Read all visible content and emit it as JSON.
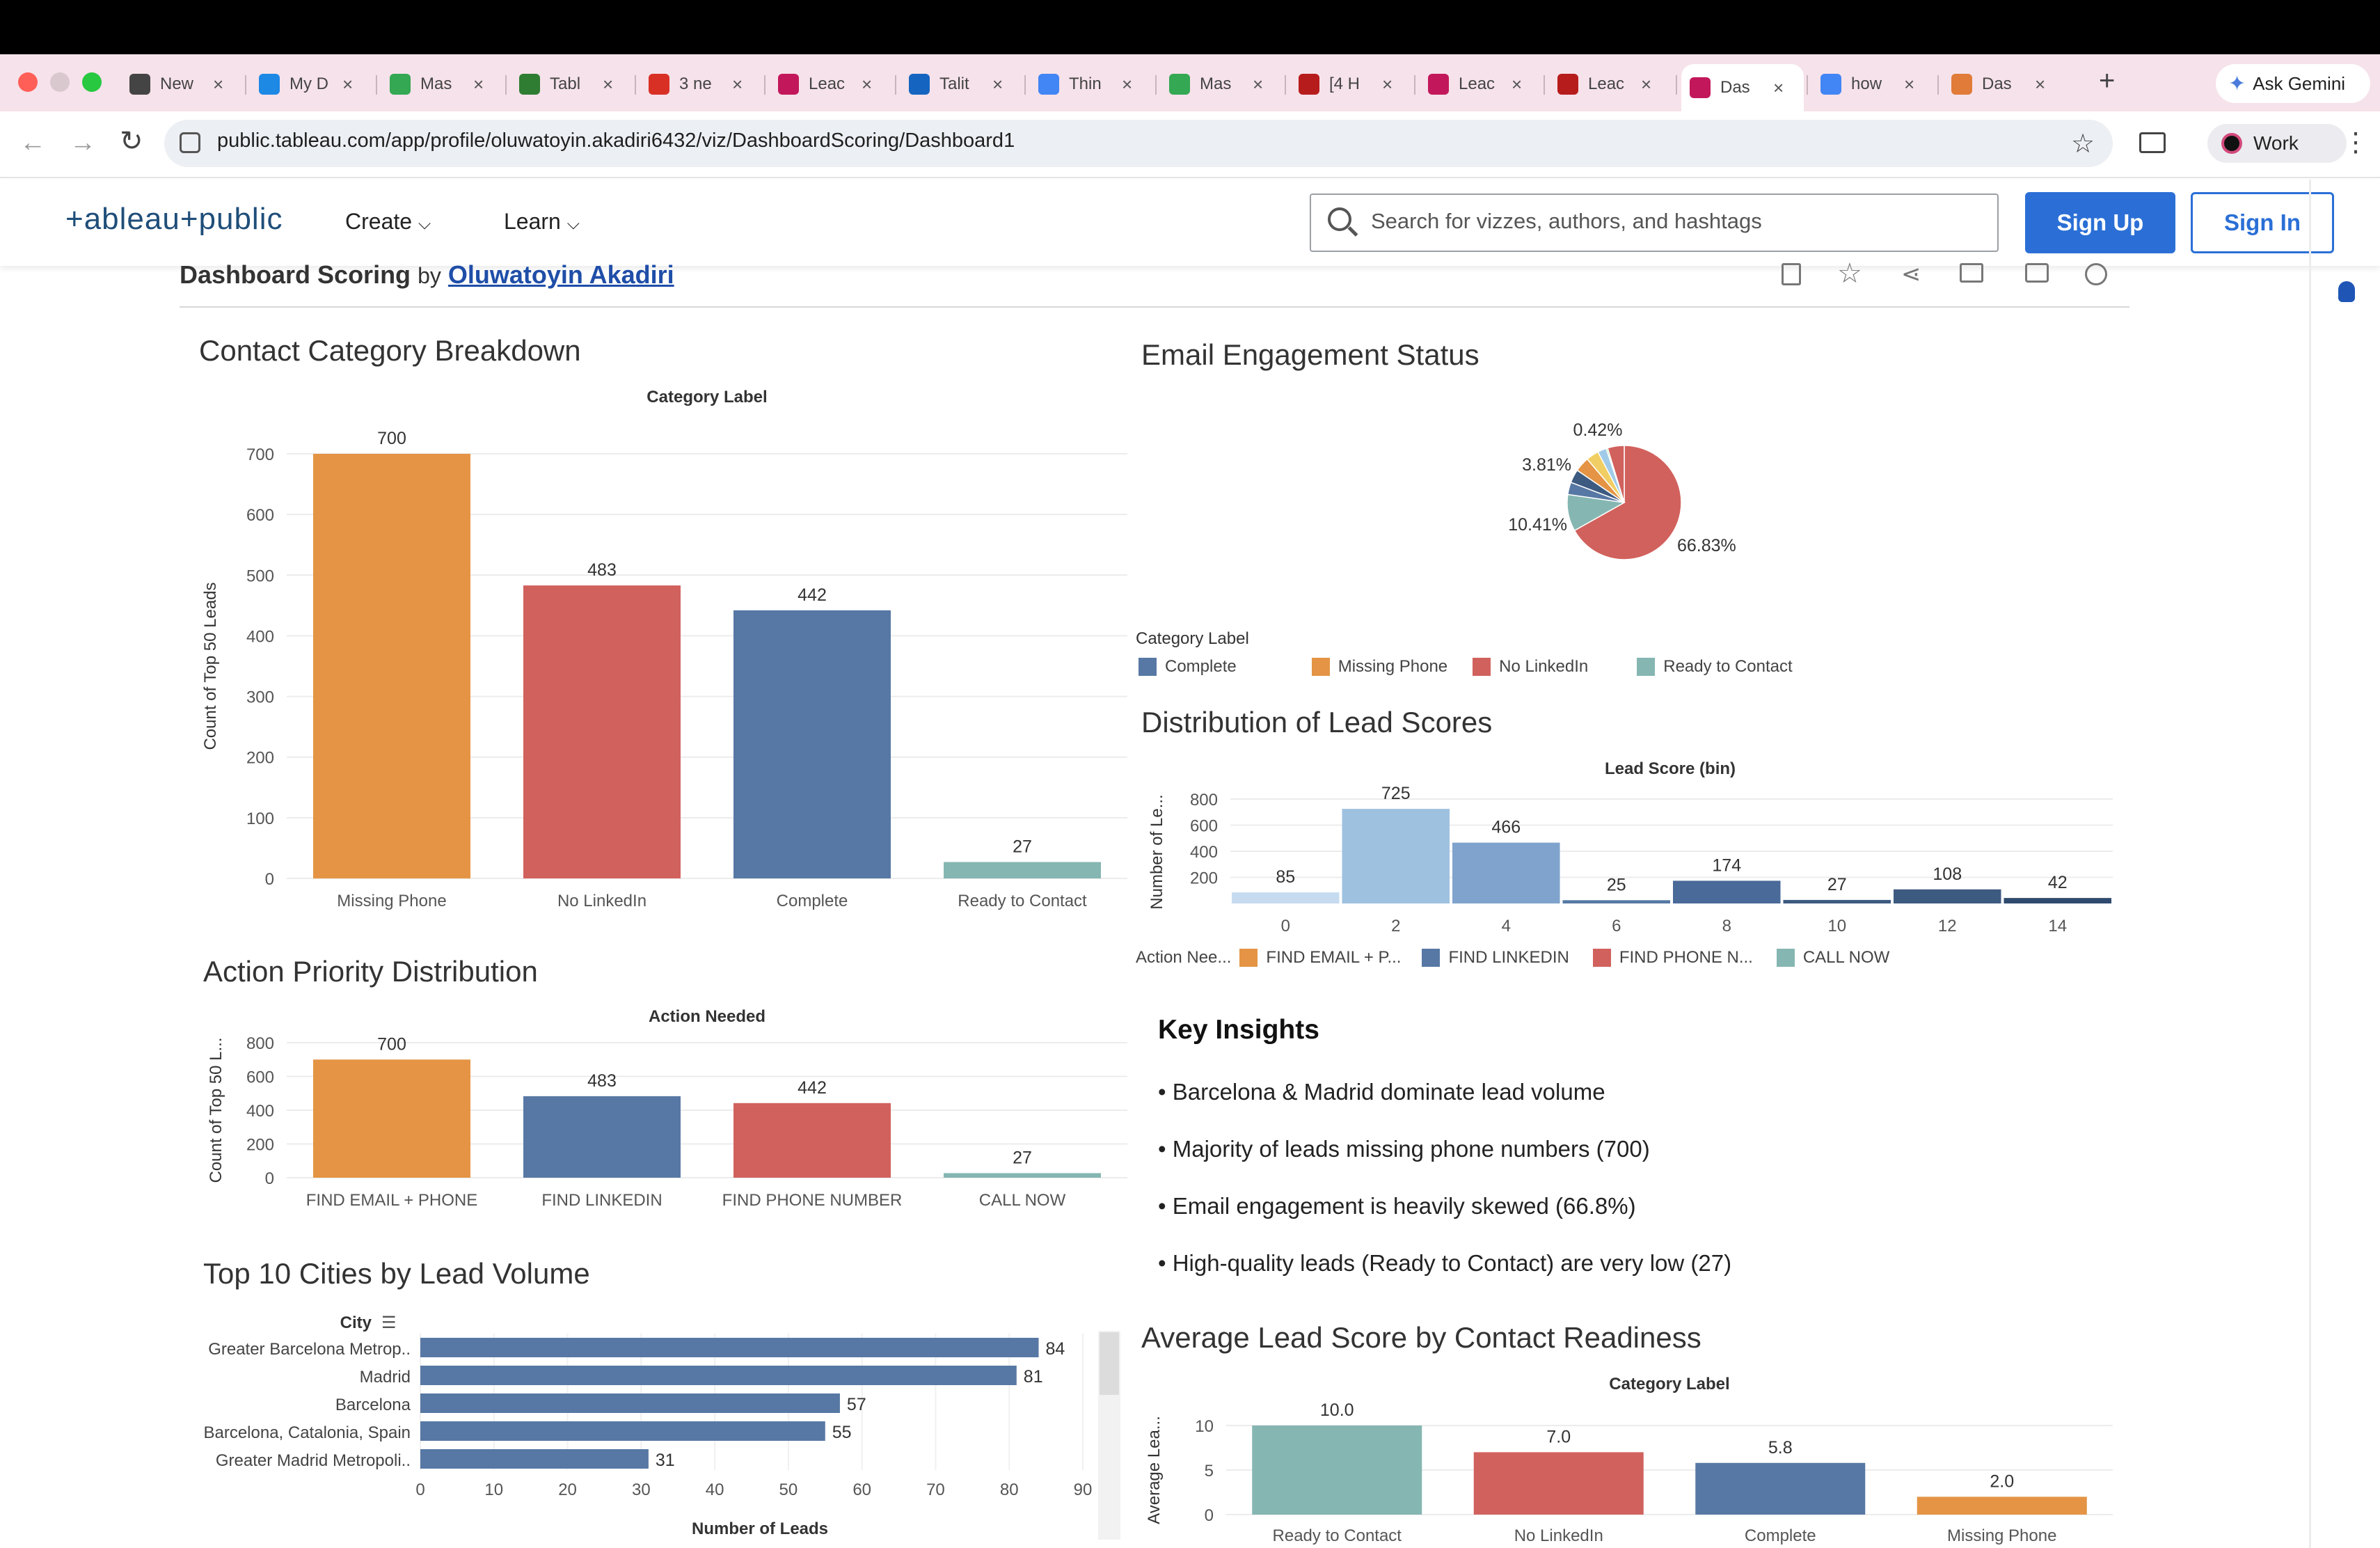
{
  "browser": {
    "tabs": [
      {
        "label": "New",
        "color": "#444444"
      },
      {
        "label": "My D",
        "color": "#1e88e5"
      },
      {
        "label": "Mas",
        "color": "#34a853"
      },
      {
        "label": "Tabl",
        "color": "#2e7d32"
      },
      {
        "label": "3 ne",
        "color": "#d93025"
      },
      {
        "label": "Leac",
        "color": "#c2185b"
      },
      {
        "label": "Talit",
        "color": "#1565c0"
      },
      {
        "label": "Thin",
        "color": "#4285f4"
      },
      {
        "label": "Mas",
        "color": "#34a853"
      },
      {
        "label": "[4 H",
        "color": "#b71c1c"
      },
      {
        "label": "Leac",
        "color": "#c2185b"
      },
      {
        "label": "Leac",
        "color": "#b71c1c"
      },
      {
        "label": "Das",
        "color": "#c2185b",
        "active": true
      },
      {
        "label": "how",
        "color": "#4285f4"
      },
      {
        "label": "Das",
        "color": "#e07b39"
      }
    ],
    "new_tab_symbol": "+",
    "ask_gemini": "Ask Gemini",
    "url": "public.tableau.com/app/profile/oluwatoyin.akadiri6432/viz/DashboardScoring/Dashboard1",
    "profile_label": "Work"
  },
  "header": {
    "logo": "+ableau+public",
    "nav": [
      "Create",
      "Learn"
    ],
    "search_placeholder": "Search for vizzes, authors, and hashtags",
    "signup": "Sign Up",
    "signin": "Sign In"
  },
  "dashboard": {
    "title": "Dashboard Scoring",
    "by": "by",
    "author": "Oluwatoyin Akadiri"
  },
  "insights": {
    "title": "Key Insights",
    "items": [
      "• Barcelona & Madrid dominate lead volume",
      "• Majority of leads missing phone numbers (700)",
      "• Email engagement is heavily skewed (66.8%)",
      "• High-quality leads (Ready to Contact) are very low (27)"
    ]
  },
  "legends": {
    "category": {
      "title": "Category Label",
      "items": [
        {
          "label": "Complete",
          "color": "#5778a4"
        },
        {
          "label": "Missing Phone",
          "color": "#e49444"
        },
        {
          "label": "No LinkedIn",
          "color": "#d1615d"
        },
        {
          "label": "Ready to Contact",
          "color": "#85b6b2"
        }
      ]
    },
    "action": {
      "title": "Action Nee...",
      "items": [
        {
          "label": "FIND EMAIL + P...",
          "color": "#e49444"
        },
        {
          "label": "FIND LINKEDIN",
          "color": "#5778a4"
        },
        {
          "label": "FIND PHONE N...",
          "color": "#d1615d"
        },
        {
          "label": "CALL NOW",
          "color": "#85b6b2"
        }
      ]
    }
  },
  "chart_data": [
    {
      "id": "contact",
      "type": "bar",
      "title": "Contact Category Breakdown",
      "header": "Category Label",
      "ylabel": "Count of Top 50 Leads",
      "categories": [
        "Missing Phone",
        "No LinkedIn",
        "Complete",
        "Ready to Contact"
      ],
      "values": [
        700,
        483,
        442,
        27
      ],
      "colors": [
        "#e49444",
        "#d1615d",
        "#5778a4",
        "#85b6b2"
      ],
      "yticks": [
        0,
        100,
        200,
        300,
        400,
        500,
        600,
        700
      ],
      "ylim": [
        0,
        700
      ]
    },
    {
      "id": "email",
      "type": "pie",
      "title": "Email Engagement Status",
      "labels": [
        "66.83%",
        "10.41%",
        "3.81%",
        "0.42%"
      ],
      "slices": [
        {
          "value": 66.83,
          "color": "#d1615d"
        },
        {
          "value": 10.41,
          "color": "#85b6b2"
        },
        {
          "value": 3.5,
          "color": "#5778a4"
        },
        {
          "value": 3.81,
          "color": "#3d5a80"
        },
        {
          "value": 4.2,
          "color": "#e49444"
        },
        {
          "value": 3.6,
          "color": "#f1ce63"
        },
        {
          "value": 2.5,
          "color": "#a0cbe8"
        },
        {
          "value": 0.42,
          "color": "#8cd17d"
        },
        {
          "value": 4.71,
          "color": "#d1615d"
        }
      ]
    },
    {
      "id": "dist",
      "type": "bar",
      "title": "Distribution of Lead Scores",
      "header": "Lead Score (bin)",
      "ylabel": "Number of Le...",
      "x": [
        0,
        2,
        4,
        6,
        8,
        10,
        12,
        14
      ],
      "values": [
        85,
        725,
        466,
        25,
        174,
        27,
        108,
        42
      ],
      "colors": [
        "#c6dbef",
        "#9ec1e0",
        "#7fa3cc",
        "#5778a4",
        "#4a6a99",
        "#3d5a80",
        "#3d5a80",
        "#2f4a6e"
      ],
      "yticks": [
        200,
        400,
        600,
        800
      ],
      "ylim": [
        0,
        800
      ]
    },
    {
      "id": "action",
      "type": "bar",
      "title": "Action Priority Distribution",
      "header": "Action Needed",
      "ylabel": "Count of Top 50 L...",
      "categories": [
        "FIND EMAIL + PHONE",
        "FIND LINKEDIN",
        "FIND PHONE NUMBER",
        "CALL NOW"
      ],
      "values": [
        700,
        483,
        442,
        27
      ],
      "colors": [
        "#e49444",
        "#5778a4",
        "#d1615d",
        "#85b6b2"
      ],
      "yticks": [
        0,
        200,
        400,
        600,
        800
      ],
      "ylim": [
        0,
        800
      ]
    },
    {
      "id": "cities",
      "type": "bar",
      "orientation": "horizontal",
      "title": "Top 10 Cities by Lead Volume",
      "header": "City",
      "xlabel": "Number of Leads",
      "categories": [
        "Greater Barcelona Metrop..",
        "Madrid",
        "Barcelona",
        "Barcelona, Catalonia, Spain",
        "Greater Madrid Metropoli.."
      ],
      "values": [
        84,
        81,
        57,
        55,
        31
      ],
      "color": "#5778a4",
      "xticks": [
        0,
        10,
        20,
        30,
        40,
        50,
        60,
        70,
        80,
        90
      ],
      "xlim": [
        0,
        90
      ]
    },
    {
      "id": "avg",
      "type": "bar",
      "title": "Average Lead Score by Contact Readiness",
      "header": "Category Label",
      "ylabel": "Average Lea...",
      "categories": [
        "Ready to Contact",
        "No LinkedIn",
        "Complete",
        "Missing Phone"
      ],
      "values": [
        10.0,
        7.0,
        5.8,
        2.0
      ],
      "colors": [
        "#85b6b2",
        "#d1615d",
        "#5778a4",
        "#e49444"
      ],
      "yticks": [
        0,
        5,
        10
      ],
      "ylim": [
        0,
        10
      ]
    }
  ]
}
